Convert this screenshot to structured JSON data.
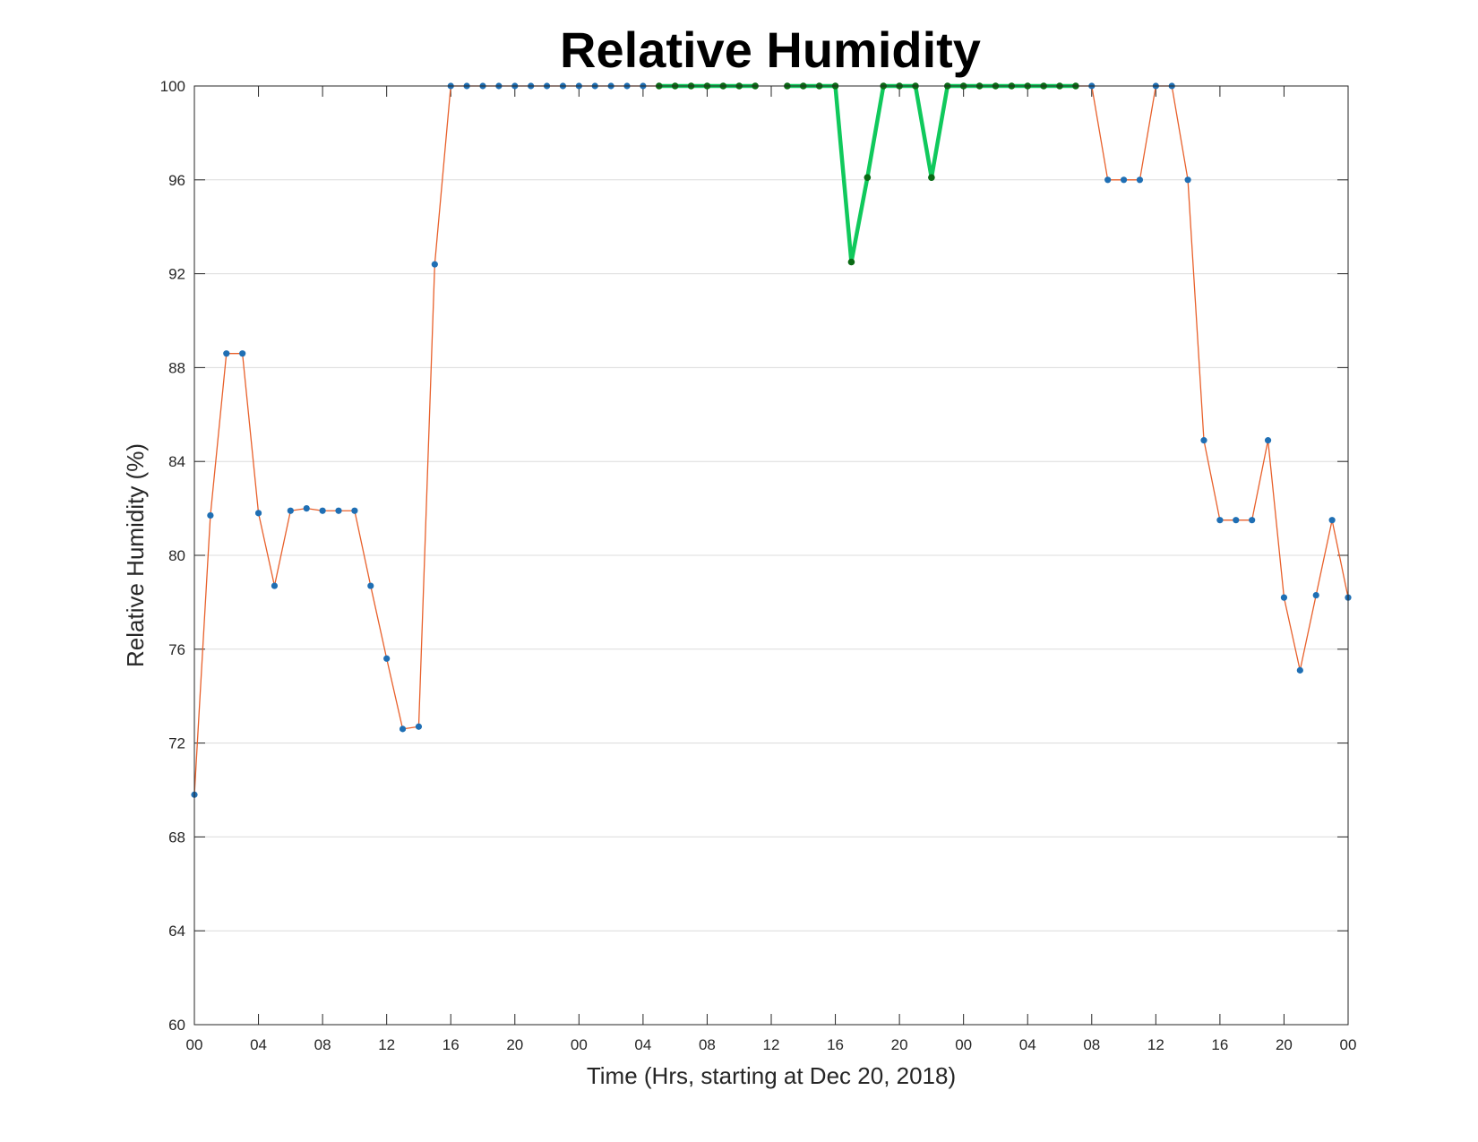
{
  "chart_data": {
    "type": "line",
    "title": "Relative Humidity",
    "xlabel": "Time (Hrs, starting at Dec 20, 2018)",
    "ylabel": "Relative Humidity (%)",
    "ylim": [
      60,
      100
    ],
    "xlim": [
      0,
      72
    ],
    "grid": "horizontal",
    "x_tick_values": [
      0,
      4,
      8,
      12,
      16,
      20,
      24,
      28,
      32,
      36,
      40,
      44,
      48,
      52,
      56,
      60,
      64,
      68,
      72
    ],
    "x_tick_labels": [
      "00",
      "04",
      "08",
      "12",
      "16",
      "20",
      "00",
      "04",
      "08",
      "12",
      "16",
      "20",
      "00",
      "04",
      "08",
      "12",
      "16",
      "20",
      "00"
    ],
    "y_ticks": [
      60,
      64,
      68,
      72,
      76,
      80,
      84,
      88,
      92,
      96,
      100
    ],
    "series": [
      {
        "role": "hourly",
        "x": [
          0,
          1,
          2,
          3,
          4,
          5,
          6,
          7,
          8,
          9,
          10,
          11,
          12,
          13,
          14,
          15,
          16,
          17,
          18,
          19,
          20,
          21,
          22,
          23,
          24,
          25,
          26,
          27,
          28,
          29,
          30,
          31,
          32,
          33,
          34,
          35,
          36,
          37,
          38,
          39,
          40,
          41,
          42,
          43,
          44,
          45,
          46,
          47,
          48,
          49,
          50,
          51,
          52,
          53,
          54,
          55,
          56,
          57,
          58,
          59,
          60,
          61,
          62,
          63,
          64,
          65,
          66,
          67,
          68,
          69,
          70,
          71,
          72
        ],
        "y": [
          69.8,
          81.7,
          88.6,
          88.6,
          81.8,
          78.7,
          81.9,
          82.0,
          81.9,
          81.9,
          81.9,
          78.7,
          75.6,
          72.6,
          72.7,
          92.4,
          100,
          100,
          100,
          100,
          100,
          100,
          100,
          100,
          100,
          100,
          100,
          100,
          100,
          100,
          100,
          100,
          100,
          100,
          100,
          100,
          null,
          100,
          100,
          100,
          100,
          92.5,
          96.1,
          100,
          100,
          100,
          96.1,
          100,
          100,
          100,
          100,
          100,
          100,
          100,
          100,
          100,
          100,
          96.0,
          96.0,
          96.0,
          100,
          100,
          96.0,
          84.9,
          81.5,
          81.5,
          81.5,
          84.9,
          78.2,
          75.1,
          78.3,
          81.5,
          78.2
        ],
        "line_color": "#e8602b",
        "marker_color": "#1f6fb4"
      },
      {
        "role": "highlighted",
        "segments": [
          {
            "x": [
              29,
              30,
              31,
              32,
              33,
              34,
              35
            ],
            "y": [
              100,
              100,
              100,
              100,
              100,
              100,
              100
            ]
          },
          {
            "x": [
              37,
              38,
              39,
              40,
              41,
              42,
              43,
              44,
              45,
              46,
              47,
              48,
              49,
              50,
              51,
              52,
              53,
              54,
              55
            ],
            "y": [
              100,
              100,
              100,
              100,
              92.5,
              96.1,
              100,
              100,
              100,
              96.1,
              100,
              100,
              100,
              100,
              100,
              100,
              100,
              100,
              100
            ]
          }
        ],
        "line_color": "#10c95c",
        "marker_color": "#0a6b14"
      }
    ]
  }
}
